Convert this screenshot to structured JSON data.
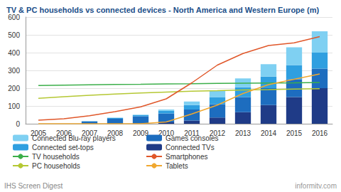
{
  "chart_data": {
    "type": "bar",
    "title": "TV & PC households vs connected devices - North America and Western Europe (m)",
    "annotations": [
      "IHS Screen Digest",
      "informitv.com"
    ],
    "categories": [
      "2005",
      "2006",
      "2007",
      "2008",
      "2009",
      "2010",
      "2011",
      "2012",
      "2013",
      "2014",
      "2015",
      "2016"
    ],
    "series": [
      {
        "name": "Connected TVs",
        "type": "bar",
        "color": "#1f3b87",
        "values": [
          0,
          0,
          0,
          0,
          2,
          8,
          18,
          35,
          65,
          105,
          150,
          200
        ]
      },
      {
        "name": "Games consoles",
        "type": "bar",
        "color": "#1d6dbf",
        "values": [
          0,
          0,
          12,
          28,
          40,
          50,
          62,
          75,
          85,
          95,
          100,
          110
        ]
      },
      {
        "name": "Connected set-tops",
        "type": "bar",
        "color": "#2f9fe0",
        "values": [
          0,
          0,
          2,
          5,
          7,
          15,
          25,
          40,
          55,
          65,
          80,
          90
        ]
      },
      {
        "name": "Connected Blu-ray players",
        "type": "bar",
        "color": "#7fd0f2",
        "values": [
          0,
          0,
          0,
          1,
          2,
          7,
          20,
          35,
          50,
          70,
          100,
          120
        ]
      },
      {
        "name": "TV households",
        "type": "line",
        "color": "#3caf4a",
        "values": [
          215,
          217,
          219,
          221,
          222,
          224,
          225,
          227,
          228,
          229,
          230,
          232
        ]
      },
      {
        "name": "PC households",
        "type": "line",
        "color": "#b5c834",
        "values": [
          143,
          152,
          160,
          167,
          173,
          178,
          183,
          186,
          190,
          192,
          195,
          197
        ]
      },
      {
        "name": "Smartphones",
        "type": "line",
        "color": "#e0572a",
        "values": [
          20,
          28,
          45,
          68,
          95,
          140,
          230,
          330,
          395,
          440,
          455,
          490
        ]
      },
      {
        "name": "Tablets",
        "type": "line",
        "color": "#f0a830",
        "values": [
          0,
          0,
          0,
          0,
          0,
          10,
          55,
          105,
          170,
          220,
          250,
          280
        ]
      }
    ],
    "ylim": [
      0,
      600
    ],
    "yticks": [
      0,
      100,
      200,
      300,
      400,
      500,
      600
    ],
    "grid": true,
    "stacked": true,
    "legend": "bottom"
  }
}
